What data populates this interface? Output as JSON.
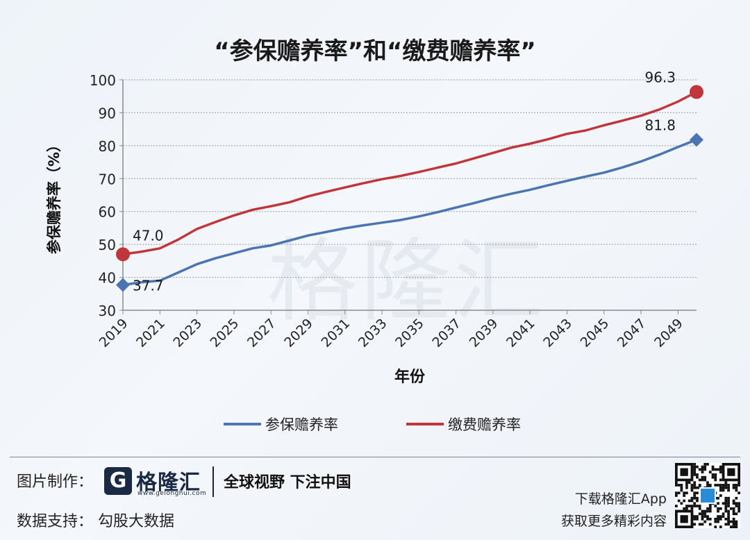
{
  "chart_data": {
    "type": "line",
    "title": "“参保赡养率”和“缴费赡养率”",
    "xlabel": "年份",
    "ylabel": "参保赡养率（%）",
    "ylim": [
      30,
      100
    ],
    "yticks": [
      30,
      40,
      50,
      60,
      70,
      80,
      90,
      100
    ],
    "xticks": [
      "2019",
      "2021",
      "2023",
      "2025",
      "2027",
      "2029",
      "2031",
      "2033",
      "2035",
      "2037",
      "2039",
      "2041",
      "2043",
      "2045",
      "2047",
      "2049"
    ],
    "x": [
      2019,
      2020,
      2021,
      2022,
      2023,
      2024,
      2025,
      2026,
      2027,
      2028,
      2029,
      2030,
      2031,
      2032,
      2033,
      2034,
      2035,
      2036,
      2037,
      2038,
      2039,
      2040,
      2041,
      2042,
      2043,
      2044,
      2045,
      2046,
      2047,
      2048,
      2049,
      2050
    ],
    "grid": true,
    "legend_position": "bottom",
    "series": [
      {
        "name": "参保赡养率",
        "color": "#4a74b2",
        "marker": "diamond",
        "values": [
          37.7,
          38.5,
          39.0,
          41.5,
          44.0,
          45.8,
          47.3,
          48.8,
          49.7,
          51.2,
          52.7,
          53.8,
          54.9,
          55.8,
          56.6,
          57.4,
          58.5,
          59.8,
          61.2,
          62.6,
          64.1,
          65.4,
          66.6,
          68.0,
          69.3,
          70.6,
          71.8,
          73.4,
          75.2,
          77.3,
          79.6,
          81.8
        ],
        "labels": [
          {
            "x": 2019,
            "text": "37.7"
          },
          {
            "x": 2050,
            "text": "81.8"
          }
        ]
      },
      {
        "name": "缴费赡养率",
        "color": "#c0363a",
        "marker": "circle",
        "values": [
          47.0,
          47.8,
          48.8,
          51.5,
          54.7,
          56.8,
          58.8,
          60.5,
          61.6,
          62.8,
          64.6,
          66.0,
          67.3,
          68.6,
          69.8,
          70.8,
          72.0,
          73.3,
          74.6,
          76.2,
          77.8,
          79.4,
          80.6,
          82.0,
          83.6,
          84.6,
          86.2,
          87.6,
          89.1,
          91.0,
          93.4,
          96.3
        ],
        "labels": [
          {
            "x": 2019,
            "text": "47.0"
          },
          {
            "x": 2050,
            "text": "96.3"
          }
        ]
      }
    ]
  },
  "watermark": "格隆汇",
  "footer": {
    "credit_label": "图片制作：",
    "logo_mark": "G",
    "logo_name": "格隆汇",
    "logo_url": "www.gelonghui.com",
    "slogan": "全球视野 下注中国",
    "data_label": "数据支持：  勾股大数据",
    "app_download": "下载格隆汇App",
    "app_more": "获取更多精彩内容"
  },
  "colors": {
    "axis": "#8a8a8a",
    "grid": "#9a9a9a",
    "text": "#222222"
  }
}
